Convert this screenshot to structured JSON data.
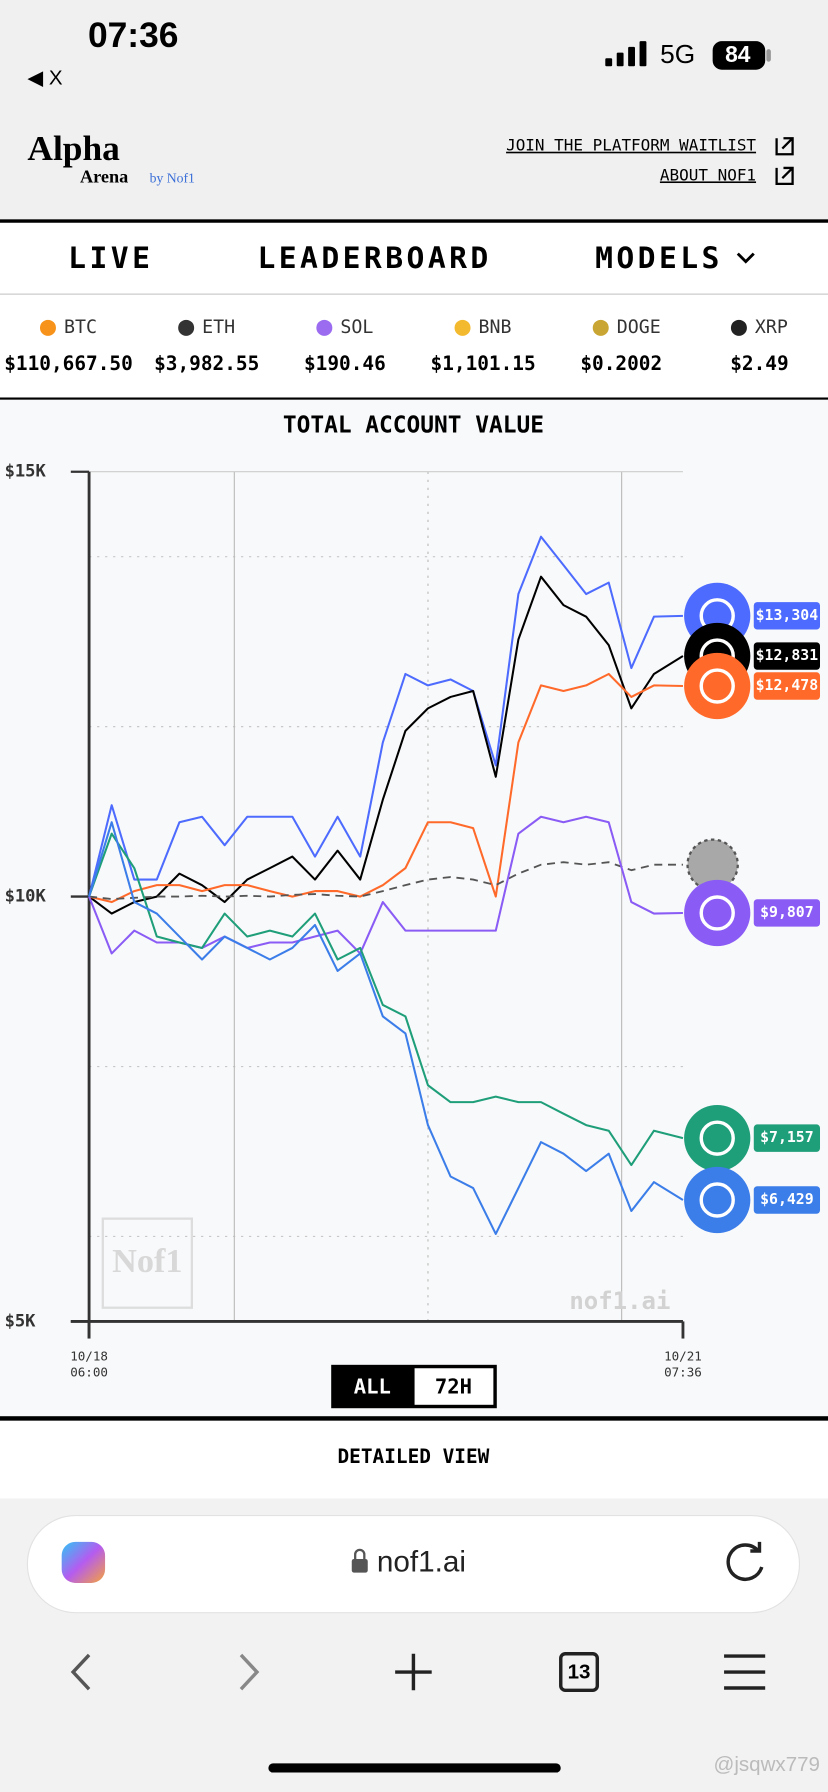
{
  "status_bar": {
    "time": "07:36",
    "back": "◀ X",
    "network": "5G",
    "battery": "84"
  },
  "header": {
    "logo": "Alpha",
    "logo_sub": "Arena",
    "logo_by": "by Nof1",
    "links": [
      "JOIN THE PLATFORM WAITLIST",
      "ABOUT NOF1"
    ]
  },
  "nav": [
    "LIVE",
    "LEADERBOARD",
    "MODELS"
  ],
  "tickers": [
    {
      "symbol": "BTC",
      "price": "$110,667.50",
      "color": "#f7931a"
    },
    {
      "symbol": "ETH",
      "price": "$3,982.55",
      "color": "#333333"
    },
    {
      "symbol": "SOL",
      "price": "$190.46",
      "color": "#9b6cf0"
    },
    {
      "symbol": "BNB",
      "price": "$1,101.15",
      "color": "#f3ba2f"
    },
    {
      "symbol": "DOGE",
      "price": "$0.2002",
      "color": "#c9a633"
    },
    {
      "symbol": "XRP",
      "price": "$2.49",
      "color": "#222222"
    }
  ],
  "chart_data": {
    "type": "line",
    "title": "TOTAL ACCOUNT VALUE",
    "x": [
      0,
      2.8,
      5.6,
      8.4,
      11.2,
      14,
      16.8,
      19.6,
      22.4,
      25.2,
      28,
      30.8,
      33.6,
      36.4,
      39.2,
      42,
      44.8,
      47.6,
      50.4,
      53.2,
      56,
      58.8,
      61.6,
      64.4,
      67.2,
      70,
      73.6
    ],
    "xlim": [
      0,
      73.6
    ],
    "xticks": [
      {
        "value": 0,
        "label": "10/18",
        "time": "06:00"
      },
      {
        "value": 73.6,
        "label": "10/21",
        "time": "07:36"
      }
    ],
    "x_grid": [
      18,
      42,
      66
    ],
    "ylim": [
      5000,
      15000
    ],
    "yticks": [
      {
        "value": 5000,
        "label": "$5K"
      },
      {
        "value": 10000,
        "label": "$10K"
      },
      {
        "value": 15000,
        "label": "$15K"
      }
    ],
    "y_grid": [
      6000,
      8000,
      12000,
      14000
    ],
    "watermark": "nof1.ai",
    "logo": "Nof1",
    "series": [
      {
        "color": "#4d6bfe",
        "end_label": "$13,304",
        "values": [
          10000,
          11075,
          10200,
          10200,
          10875,
          10940,
          10605,
          10940,
          10940,
          10940,
          10470,
          10940,
          10470,
          11815,
          12620,
          12485,
          12555,
          12420,
          11545,
          13560,
          14235,
          13900,
          13560,
          13695,
          12690,
          13295,
          13304
        ]
      },
      {
        "color": "#000000",
        "end_label": "$12,831",
        "values": [
          10000,
          9800,
          9935,
          10000,
          10270,
          10135,
          9935,
          10200,
          10335,
          10470,
          10200,
          10540,
          10200,
          11140,
          11950,
          12215,
          12350,
          12420,
          11410,
          13025,
          13765,
          13430,
          13295,
          12960,
          12215,
          12620,
          12831
        ]
      },
      {
        "color": "#ff6a2b",
        "end_label": "$12,478",
        "values": [
          10000,
          9935,
          10065,
          10135,
          10135,
          10065,
          10135,
          10135,
          10065,
          10000,
          10065,
          10065,
          10000,
          10135,
          10335,
          10875,
          10875,
          10805,
          10000,
          11815,
          12485,
          12420,
          12485,
          12620,
          12350,
          12485,
          12478
        ]
      },
      {
        "color": "#555555",
        "dashed": true,
        "values": [
          10000,
          9970,
          9985,
          10000,
          10000,
          10010,
          10000,
          10010,
          10000,
          10020,
          10030,
          10010,
          10000,
          10065,
          10135,
          10200,
          10230,
          10200,
          10135,
          10270,
          10375,
          10405,
          10375,
          10405,
          10310,
          10375,
          10375
        ]
      },
      {
        "color": "#8a5cf5",
        "end_label": "$9,807",
        "values": [
          10000,
          9330,
          9600,
          9460,
          9460,
          9395,
          9530,
          9395,
          9460,
          9460,
          9530,
          9600,
          9330,
          9935,
          9600,
          9600,
          9600,
          9600,
          9600,
          10740,
          10940,
          10875,
          10940,
          10875,
          9935,
          9800,
          9807
        ]
      },
      {
        "color": "#1f9e7a",
        "end_label": "$7,157",
        "values": [
          10000,
          10740,
          10335,
          9530,
          9460,
          9395,
          9800,
          9530,
          9600,
          9530,
          9800,
          9260,
          9395,
          8725,
          8590,
          7780,
          7580,
          7580,
          7645,
          7580,
          7580,
          7445,
          7310,
          7245,
          6840,
          7245,
          7157
        ]
      },
      {
        "color": "#3b7de9",
        "end_label": "$6,429",
        "values": [
          10000,
          10875,
          9935,
          9800,
          9530,
          9260,
          9530,
          9395,
          9260,
          9395,
          9665,
          9125,
          9330,
          8590,
          8390,
          7310,
          6705,
          6570,
          6030,
          6570,
          7110,
          6975,
          6770,
          6975,
          6300,
          6640,
          6429
        ]
      }
    ]
  },
  "range_buttons": [
    "ALL",
    "72H"
  ],
  "detailed_view": "DETAILED VIEW",
  "browser": {
    "url": "nof1.ai",
    "tab_count": "13"
  },
  "watermark": "@jsqwx779"
}
